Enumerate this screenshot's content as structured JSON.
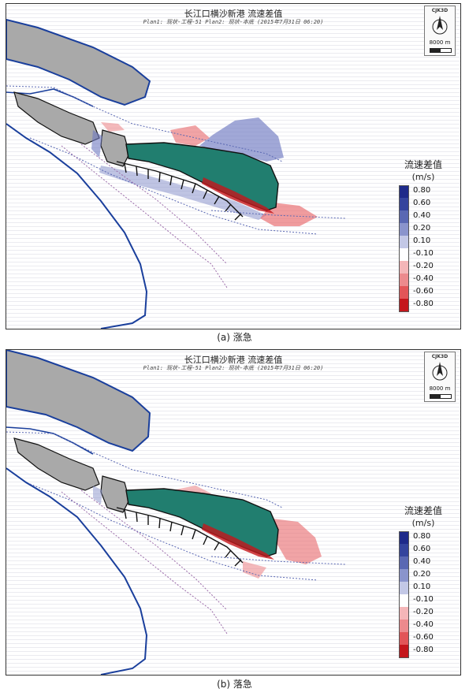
{
  "panels": [
    {
      "title": "长江口横沙新港   流速差值",
      "subtitle": "Plan1: 现状-工程-51    Plan2: 现状-本底 (2015年7月31日 06:20)",
      "caption": "(a) 涨急"
    },
    {
      "title": "长江口横沙新港   流速差值",
      "subtitle": "Plan1: 现状-工程-51    Plan2: 现状-本底 (2015年7月31日 06:20)",
      "caption": "(b) 落急"
    }
  ],
  "compass": {
    "brand": "CJK3D",
    "scale_label": "8000 m"
  },
  "legend": {
    "title": "流速差值",
    "unit": "(m/s)",
    "items": [
      {
        "label": "0.80",
        "color": "#1e2a8a"
      },
      {
        "label": "0.60",
        "color": "#34449d"
      },
      {
        "label": "0.40",
        "color": "#5a68b3"
      },
      {
        "label": "0.20",
        "color": "#8a94cc"
      },
      {
        "label": "0.10",
        "color": "#c3c8e6"
      },
      {
        "label": "-0.10",
        "color": "#ffffff"
      },
      {
        "label": "-0.20",
        "color": "#f4b6b8"
      },
      {
        "label": "-0.40",
        "color": "#ec8a8d"
      },
      {
        "label": "-0.60",
        "color": "#e25558"
      },
      {
        "label": "-0.80",
        "color": "#c4161c"
      }
    ]
  },
  "colors": {
    "land": "#a9a9a9",
    "project": "#217e6f",
    "coast": "#1a3f9c",
    "positive": "#6f79c2",
    "negative": "#e8676a"
  }
}
